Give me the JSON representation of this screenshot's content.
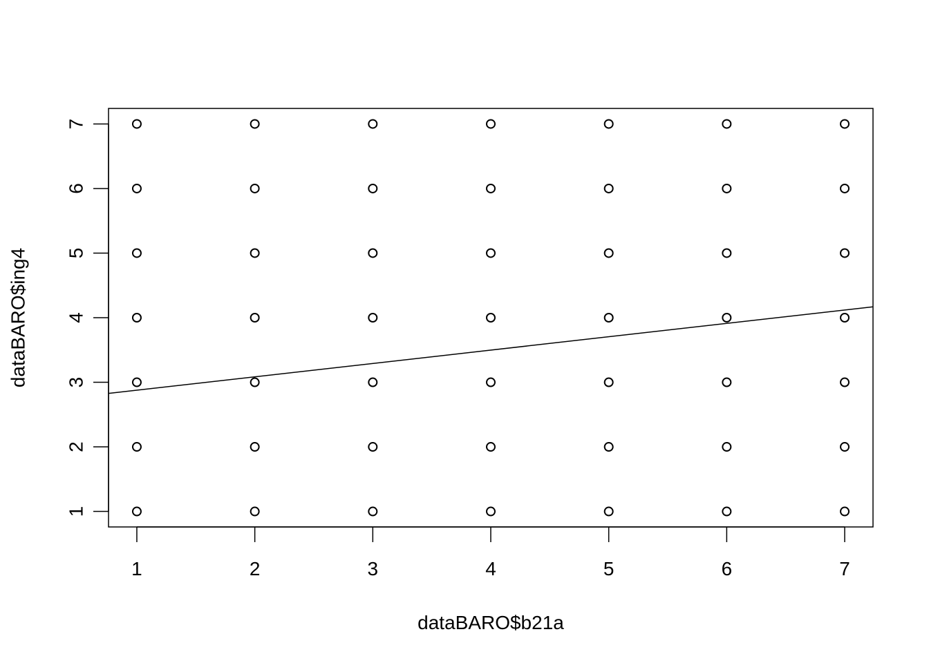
{
  "chart_data": {
    "type": "scatter",
    "xlabel": "dataBARO$b21a",
    "ylabel": "dataBARO$ing4",
    "xlim": [
      0.76,
      7.24
    ],
    "ylim": [
      0.76,
      7.24
    ],
    "x_ticks": [
      1,
      2,
      3,
      4,
      5,
      6,
      7
    ],
    "y_ticks": [
      1,
      2,
      3,
      4,
      5,
      6,
      7
    ],
    "grid": false,
    "marker": "open-circle",
    "x_values": [
      1,
      2,
      3,
      4,
      5,
      6,
      7
    ],
    "y_values": [
      1,
      2,
      3,
      4,
      5,
      6,
      7
    ],
    "regression_line": {
      "intercept": 2.67,
      "slope": 0.207
    }
  }
}
